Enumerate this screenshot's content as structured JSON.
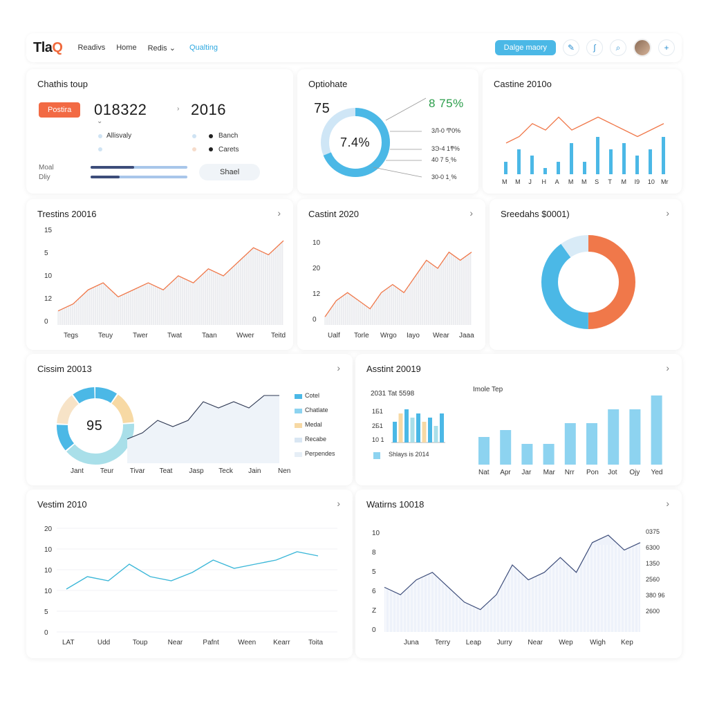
{
  "nav": {
    "logo_main": "Tla",
    "logo_accent": "Q",
    "links": [
      "Readivs",
      "Home",
      "Redis ⌄"
    ],
    "active_link": "Qualting",
    "primary_button": "Dalge maory"
  },
  "card1": {
    "title": "Chathis toup",
    "pill": "Postira",
    "value_a": "018322",
    "value_b": "2016",
    "items": [
      "Allisvaly",
      "Banch",
      "Carets"
    ],
    "row_labels": [
      "Moal",
      "Dliy"
    ],
    "progress": [
      0.45,
      0.3
    ],
    "button": "Shael"
  },
  "card2": {
    "title": "Optiohate",
    "left_value": "75",
    "center_value": "7.4%",
    "top_value": "8 75%",
    "callouts": [
      "3Л-0 Ͳ0%",
      "3Ͽ-4 1ͳ%",
      "40 7 5͵%",
      "30-0 1͵%"
    ]
  },
  "card3": {
    "title": "Castine 2010o",
    "x_labels": [
      "M",
      "M",
      "J",
      "H",
      "A",
      "M",
      "M",
      "S",
      "T",
      "M",
      "I9",
      "10",
      "Mr"
    ]
  },
  "card4": {
    "title": "Trestins 20016",
    "y_labels": [
      "15",
      "5",
      "10",
      "12",
      "0"
    ],
    "x_labels": [
      "Tegs",
      "Teuy",
      "Twer",
      "Twat",
      "Taan",
      "Wwer",
      "Teitd"
    ]
  },
  "card5": {
    "title": "Castint 2020",
    "y_labels": [
      "10",
      "20",
      "12",
      "0"
    ],
    "x_labels": [
      "Ualf",
      "Torle",
      "Wrgo",
      "Iayo",
      "Wear",
      "Jaaa"
    ]
  },
  "card6": {
    "title": "Sreedahs $0001)"
  },
  "card7": {
    "title": "Cissim 20013",
    "donut_value": "95",
    "x_labels": [
      "Jant",
      "Teur",
      "Tivar",
      "Teat",
      "Jasp",
      "Teck",
      "Jain",
      "Nen"
    ],
    "legend": [
      "Cotel",
      "Chatlate",
      "Medal",
      "Recabe",
      "Perpendes"
    ]
  },
  "card8": {
    "title": "Asstint 20019",
    "mini_title": "2031 Tat 5598",
    "mini_y": [
      "1Б1",
      "2Б1",
      "10 1"
    ],
    "mini_legend": "Shlays is 2014",
    "bar_title": "Imole Tep",
    "x_labels": [
      "Nat",
      "Apr",
      "Jar",
      "Mar",
      "Nrr",
      "Pon",
      "Jot",
      "Ojy",
      "Yed"
    ]
  },
  "card9": {
    "title": "Vestim 2010",
    "y_labels": [
      "20",
      "10",
      "10",
      "10",
      "5",
      "0"
    ],
    "x_labels": [
      "LAT",
      "Udd",
      "Toup",
      "Near",
      "Pafnt",
      "Ween",
      "Kearr",
      "Toita"
    ]
  },
  "card10": {
    "title": "Watirns 10018",
    "y_labels": [
      "10",
      "8",
      "5",
      "6",
      "Z",
      "0"
    ],
    "right_labels": [
      "0375",
      "6300",
      "1350",
      "2560",
      "380 96",
      "2600"
    ],
    "x_labels": [
      "Juna",
      "Terry",
      "Leap",
      "Jurry",
      "Near",
      "Wep",
      "Wigh",
      "Kep"
    ]
  },
  "colors": {
    "blue": "#4bb8e6",
    "orange": "#f0784a",
    "navy": "#3d4d7a",
    "light": "#d9ebf7",
    "yellow": "#f7d9a4"
  },
  "chart_data": [
    {
      "type": "bar",
      "title": "Castine 2010o",
      "values": [
        2,
        4,
        3,
        1,
        2,
        5,
        2,
        6,
        4,
        5,
        3,
        4,
        6
      ],
      "line": [
        3,
        4,
        6,
        5,
        7,
        5,
        6,
        7,
        6,
        5,
        4,
        5,
        6
      ]
    },
    {
      "type": "area",
      "title": "Trestins 20016",
      "values": [
        2,
        3,
        5,
        6,
        4,
        5,
        6,
        5,
        7,
        6,
        8,
        7,
        9,
        11,
        10,
        12
      ]
    },
    {
      "type": "area",
      "title": "Castint 2020",
      "values": [
        1,
        3,
        4,
        3,
        2,
        4,
        5,
        4,
        6,
        8,
        7,
        9,
        8,
        9
      ]
    },
    {
      "type": "pie",
      "title": "Sreedahs $0001)",
      "values": [
        50,
        40,
        10
      ]
    },
    {
      "type": "line",
      "title": "Cissim 20013",
      "values": [
        3,
        4,
        6,
        5,
        6,
        9,
        8,
        9,
        8,
        10,
        10
      ]
    },
    {
      "type": "bar",
      "title": "Imole Tep",
      "categories": [
        "Nat",
        "Apr",
        "Jar",
        "Mar",
        "Nrr",
        "Pon",
        "Jot",
        "Ojy",
        "Yed"
      ],
      "values": [
        4,
        5,
        3,
        3,
        6,
        6,
        8,
        8,
        10
      ]
    },
    {
      "type": "line",
      "title": "Vestim 2010",
      "values": [
        3,
        6,
        5,
        9,
        6,
        5,
        7,
        10,
        8,
        9,
        10,
        12,
        11
      ]
    },
    {
      "type": "area",
      "title": "Watirns 10018",
      "values": [
        6,
        5,
        7,
        8,
        6,
        4,
        3,
        5,
        9,
        7,
        8,
        10,
        8,
        12,
        13,
        11,
        12
      ]
    }
  ]
}
